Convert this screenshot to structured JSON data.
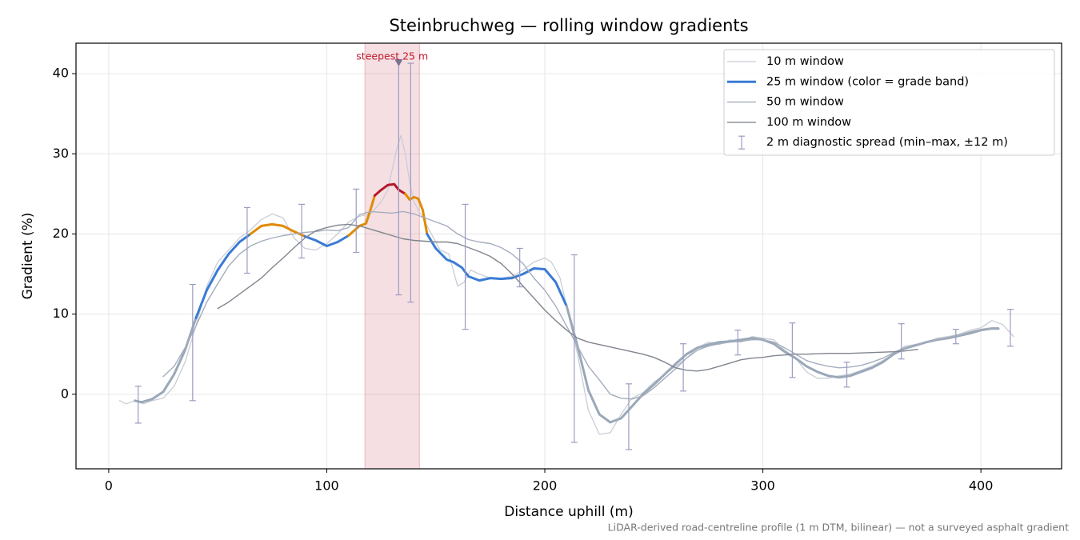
{
  "chart_data": {
    "type": "line",
    "title": "Steinbruchweg — rolling window gradients",
    "xlabel": "Distance uphill (m)",
    "ylabel": "Gradient (%)",
    "footnote": "LiDAR-derived road-centreline profile (1 m DTM, bilinear) — not a surveyed asphalt gradient",
    "xlim": [
      -15,
      437
    ],
    "ylim": [
      -9.3,
      43.8
    ],
    "xticks": [
      0,
      100,
      200,
      300,
      400
    ],
    "yticks": [
      0,
      10,
      20,
      30,
      40
    ],
    "grid": true,
    "legend": "upper right",
    "highlight": {
      "label": "steepest 25 m",
      "xlim": [
        117.5,
        142.5
      ],
      "color": "#d9808a",
      "marker_x": 133,
      "marker_y": 41.4
    },
    "series": [
      {
        "name": "10 m window",
        "color": "#c9cdd6",
        "width": 1.3,
        "x": [
          5,
          8,
          12,
          16,
          20,
          25,
          30,
          35,
          40,
          45,
          50,
          55,
          60,
          65,
          70,
          75,
          80,
          85,
          90,
          95,
          100,
          105,
          110,
          115,
          120,
          125,
          128,
          130,
          132,
          134,
          136,
          138,
          140,
          144,
          148,
          152,
          156,
          160,
          163,
          166,
          170,
          175,
          180,
          185,
          190,
          195,
          200,
          203,
          207,
          210,
          215,
          220,
          225,
          230,
          235,
          240,
          245,
          250,
          255,
          260,
          265,
          270,
          275,
          280,
          285,
          290,
          295,
          300,
          305,
          310,
          315,
          320,
          325,
          330,
          335,
          340,
          345,
          350,
          355,
          360,
          365,
          370,
          375,
          380,
          385,
          390,
          395,
          400,
          405,
          410,
          415
        ],
        "values": [
          -0.8,
          -1.2,
          -0.8,
          -1.2,
          -0.8,
          -0.5,
          1,
          4,
          8.5,
          13.5,
          16.5,
          18,
          19.5,
          20.5,
          21.8,
          22.5,
          22,
          19.5,
          18.2,
          18,
          18.8,
          20,
          21.5,
          22.2,
          22.5,
          24,
          25.5,
          28,
          30.5,
          32.3,
          30,
          26.5,
          24,
          22,
          20,
          18,
          17.5,
          13.5,
          14,
          15.5,
          15,
          14.5,
          14.5,
          14.7,
          15.5,
          16.5,
          17,
          16.5,
          14.5,
          11,
          5,
          -2,
          -5,
          -4.8,
          -2.5,
          -0.5,
          0.2,
          1.5,
          2.5,
          3.5,
          4.5,
          5.8,
          6.5,
          6.2,
          6.8,
          6.5,
          7.2,
          7,
          6.8,
          5.5,
          4.5,
          2.8,
          2,
          2,
          2.3,
          2.5,
          3,
          3.5,
          4.2,
          5,
          6,
          6.2,
          6.5,
          7,
          7.2,
          7.5,
          8,
          8.3,
          9.2,
          8.7,
          7.2
        ]
      },
      {
        "name": "25 m window (color = grade band)",
        "color": "#9aa8b8",
        "legend_color": "#3a7bd5",
        "width": 3,
        "grade_bands": [
          {
            "min": 25,
            "color": "#b5182a"
          },
          {
            "min": 20,
            "color": "#e08a00"
          },
          {
            "min": 10,
            "color": "#3a7bd5"
          }
        ],
        "x": [
          12,
          15,
          20,
          25,
          30,
          35,
          40,
          45,
          50,
          55,
          60,
          65,
          70,
          75,
          80,
          85,
          90,
          95,
          100,
          105,
          110,
          115,
          118,
          120,
          122,
          125,
          128,
          131,
          133,
          136,
          138,
          140,
          142,
          144,
          146,
          150,
          155,
          158,
          162,
          165,
          170,
          175,
          180,
          185,
          190,
          195,
          200,
          205,
          210,
          215,
          220,
          225,
          230,
          235,
          240,
          245,
          250,
          255,
          260,
          265,
          270,
          275,
          280,
          285,
          290,
          295,
          300,
          305,
          310,
          315,
          320,
          325,
          330,
          335,
          340,
          345,
          350,
          355,
          360,
          365,
          370,
          375,
          380,
          385,
          390,
          395,
          400,
          405,
          408
        ],
        "values": [
          -0.8,
          -1,
          -0.6,
          0.3,
          2.5,
          5.5,
          9.5,
          13,
          15.5,
          17.5,
          19,
          20,
          21,
          21.2,
          21,
          20.3,
          19.7,
          19.2,
          18.5,
          19,
          19.8,
          21,
          21.3,
          23,
          24.8,
          25.5,
          26.1,
          26.2,
          25.5,
          25,
          24.3,
          24.6,
          24.4,
          23,
          20,
          18.2,
          16.8,
          16.5,
          15.8,
          14.7,
          14.2,
          14.5,
          14.4,
          14.5,
          15,
          15.7,
          15.6,
          14,
          11,
          6,
          0.5,
          -2.5,
          -3.5,
          -3,
          -1.5,
          0,
          1.2,
          2.5,
          3.8,
          5,
          5.8,
          6.2,
          6.5,
          6.6,
          6.8,
          7,
          6.8,
          6.3,
          5.3,
          4.5,
          3.5,
          2.8,
          2.3,
          2.1,
          2.3,
          2.8,
          3.3,
          4,
          5,
          5.7,
          6.1,
          6.5,
          6.8,
          7,
          7.3,
          7.6,
          8,
          8.2,
          8.2
        ]
      },
      {
        "name": "50 m window",
        "color": "#a4adbd",
        "width": 1.4,
        "x": [
          25,
          30,
          35,
          40,
          45,
          50,
          55,
          60,
          65,
          70,
          75,
          80,
          85,
          90,
          95,
          100,
          105,
          110,
          115,
          120,
          125,
          130,
          135,
          140,
          145,
          150,
          155,
          160,
          165,
          170,
          175,
          180,
          185,
          190,
          195,
          200,
          205,
          210,
          215,
          220,
          225,
          230,
          235,
          240,
          245,
          250,
          255,
          260,
          265,
          270,
          275,
          280,
          285,
          290,
          295,
          300,
          305,
          310,
          315,
          320,
          325,
          330,
          335,
          340,
          345,
          350,
          355,
          360,
          365,
          370,
          375,
          380,
          385,
          390,
          395,
          400,
          405,
          408
        ],
        "values": [
          2.2,
          3.5,
          5.8,
          8.5,
          11.5,
          13.8,
          16,
          17.5,
          18.5,
          19.1,
          19.5,
          19.8,
          20,
          20.2,
          20.3,
          20.5,
          20.4,
          20.8,
          22.4,
          22.8,
          22.7,
          22.6,
          22.8,
          22.5,
          22,
          21.5,
          21,
          20,
          19.3,
          19,
          18.8,
          18.3,
          17.5,
          16.3,
          14.5,
          13,
          11,
          8.5,
          6,
          3.5,
          1.8,
          0,
          -0.5,
          -0.6,
          -0.2,
          0.8,
          2,
          3.2,
          4.5,
          5.5,
          6,
          6.3,
          6.5,
          6.6,
          6.8,
          6.8,
          6.5,
          5.8,
          5,
          4.2,
          3.8,
          3.5,
          3.3,
          3.4,
          3.6,
          4,
          4.5,
          5.2,
          5.8,
          6.2,
          6.5,
          6.8,
          7.1,
          7.4,
          7.8,
          8.1,
          8.3,
          8.3
        ]
      },
      {
        "name": "100 m window",
        "color": "#80858f",
        "width": 1.4,
        "x": [
          50,
          55,
          60,
          65,
          70,
          75,
          80,
          85,
          90,
          95,
          100,
          105,
          110,
          115,
          120,
          125,
          130,
          135,
          140,
          145,
          150,
          155,
          160,
          165,
          170,
          175,
          180,
          185,
          190,
          195,
          200,
          205,
          210,
          215,
          220,
          225,
          230,
          235,
          240,
          245,
          250,
          255,
          260,
          265,
          270,
          275,
          280,
          285,
          290,
          295,
          300,
          305,
          310,
          315,
          320,
          330,
          340,
          350,
          360,
          365,
          371
        ],
        "values": [
          10.7,
          11.5,
          12.5,
          13.5,
          14.5,
          15.8,
          17,
          18.3,
          19.5,
          20.4,
          20.8,
          21.1,
          21.2,
          21,
          20.6,
          20.2,
          19.8,
          19.4,
          19.2,
          19.1,
          19,
          19,
          18.8,
          18.3,
          17.8,
          17.2,
          16.3,
          15,
          13.5,
          12,
          10.5,
          9.2,
          8,
          7,
          6.5,
          6.2,
          5.9,
          5.6,
          5.3,
          5,
          4.6,
          4,
          3.3,
          3,
          2.9,
          3.1,
          3.5,
          3.9,
          4.3,
          4.5,
          4.6,
          4.8,
          4.9,
          5,
          5,
          5.1,
          5.1,
          5.2,
          5.3,
          5.4,
          5.6
        ]
      }
    ],
    "errorbars": {
      "name": "2 m diagnostic spread (min–max, ±12 m)",
      "color": "#9c9cc0",
      "x": [
        13.5,
        38.5,
        63.5,
        88.5,
        113.5,
        133,
        138.5,
        163.5,
        188.5,
        213.5,
        238.5,
        263.5,
        288.5,
        313.5,
        338.5,
        363.5,
        388.5,
        413.5
      ],
      "low": [
        -3.6,
        -0.8,
        15.1,
        17,
        17.7,
        12.4,
        11.5,
        8.1,
        13.4,
        -6,
        -6.9,
        0.4,
        4.9,
        2.1,
        0.9,
        4.4,
        6.3,
        6
      ],
      "high": [
        1,
        13.7,
        23.3,
        23.7,
        25.6,
        41.5,
        41.3,
        23.7,
        18.2,
        17.4,
        1.3,
        6.3,
        8,
        8.9,
        4,
        8.8,
        8.1,
        10.6
      ]
    }
  }
}
